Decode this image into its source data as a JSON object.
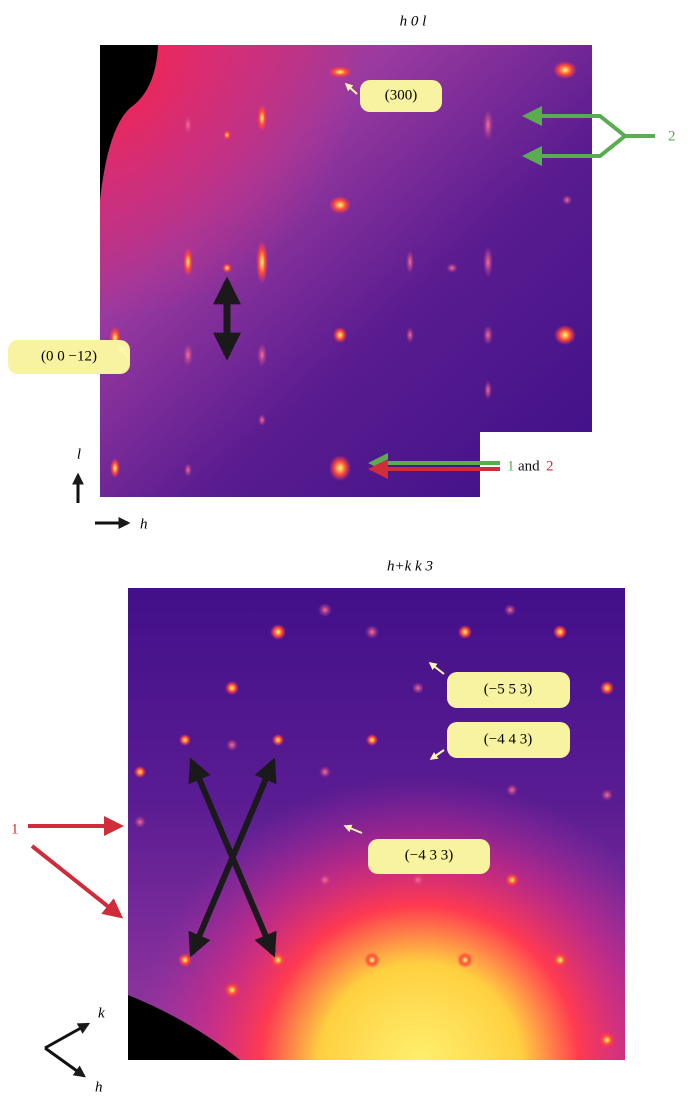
{
  "panels": [
    {
      "title": "h 0 l",
      "callouts": [
        "(300)",
        "(0 0 −12)"
      ],
      "arrow_labels": [
        "2",
        "1",
        "and",
        "2"
      ],
      "axes": [
        "l",
        "h"
      ]
    },
    {
      "title": "h+k k 3",
      "callouts": [
        "(−5 5 3)",
        "(−4 4 3)",
        "(−4 3 3)"
      ],
      "arrow_labels": [
        "1"
      ],
      "axes": [
        "k",
        "h"
      ]
    }
  ]
}
